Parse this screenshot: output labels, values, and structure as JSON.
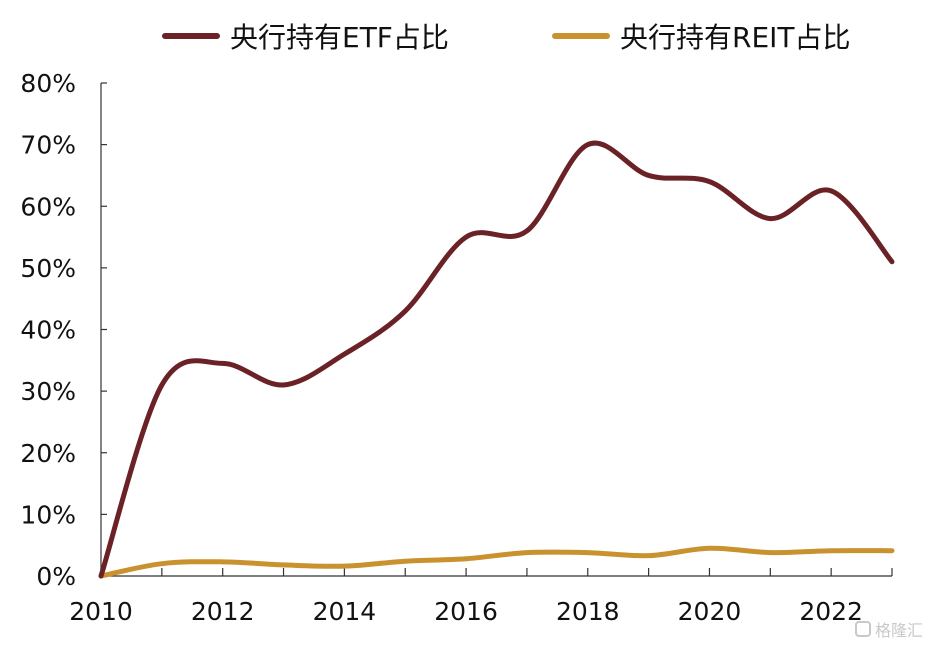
{
  "chart_data": {
    "type": "line",
    "title": "",
    "xlabel": "",
    "ylabel": "",
    "x": [
      2010,
      2011,
      2012,
      2013,
      2014,
      2015,
      2016,
      2017,
      2018,
      2019,
      2020,
      2021,
      2022,
      2023
    ],
    "x_tick_labels": [
      "2010",
      "2012",
      "2014",
      "2016",
      "2018",
      "2020",
      "2022"
    ],
    "y_tick_labels": [
      "0%",
      "10%",
      "20%",
      "30%",
      "40%",
      "50%",
      "60%",
      "70%",
      "80%"
    ],
    "ylim": [
      0,
      80
    ],
    "y_unit": "%",
    "grid": false,
    "legend_position": "top",
    "series": [
      {
        "name": "央行持有ETF占比",
        "color": "#6b2226",
        "values": [
          0,
          31,
          34.5,
          31,
          36,
          43,
          55,
          56,
          70,
          65,
          64,
          58,
          62.5,
          51
        ]
      },
      {
        "name": "央行持有REIT占比",
        "color": "#c9922e",
        "values": [
          0,
          2,
          2.3,
          1.8,
          1.6,
          2.4,
          2.8,
          3.8,
          3.8,
          3.3,
          4.5,
          3.8,
          4.1,
          4.1
        ]
      }
    ]
  },
  "watermark": {
    "text": "格隆汇"
  }
}
